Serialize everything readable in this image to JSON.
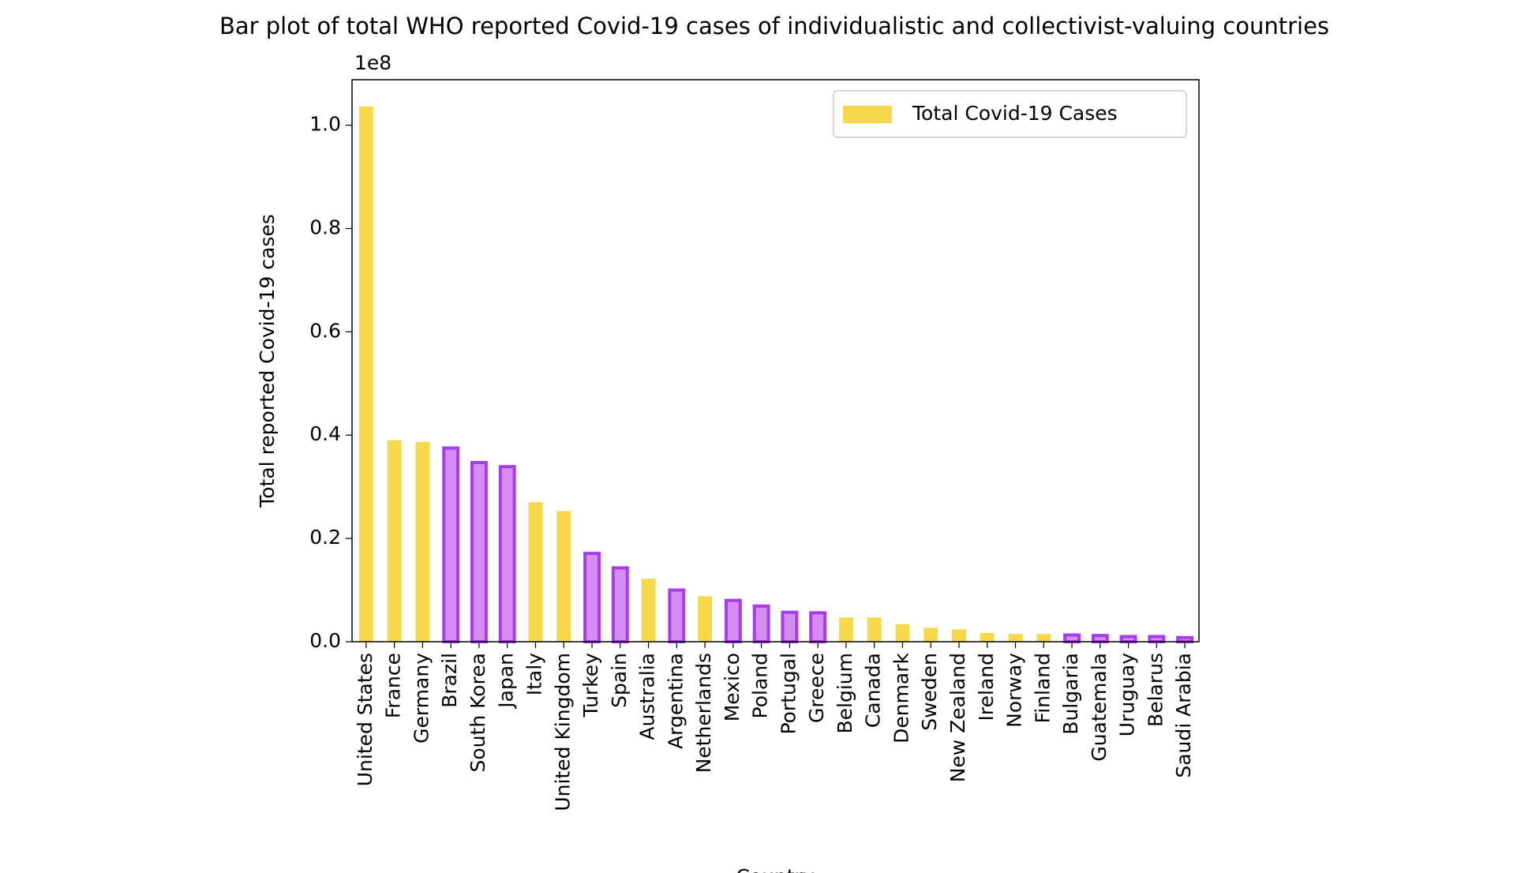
{
  "chart_data": {
    "type": "bar",
    "title": "Bar plot of total WHO reported Covid-19 cases of individualistic and collectivist-valuing countries",
    "y_label": "Total reported Covid-19 cases",
    "x_label": "Country",
    "y_offset_label": "1e8",
    "categories": [
      "United States",
      "France",
      "Germany",
      "Brazil",
      "South Korea",
      "Japan",
      "Italy",
      "United Kingdom",
      "Turkey",
      "Spain",
      "Australia",
      "Argentina",
      "Netherlands",
      "Mexico",
      "Poland",
      "Portugal",
      "Greece",
      "Belgium",
      "Canada",
      "Denmark",
      "Sweden",
      "New Zealand",
      "Ireland",
      "Norway",
      "Finland",
      "Bulgaria",
      "Guatemala",
      "Uruguay",
      "Belarus",
      "Saudi Arabia"
    ],
    "series": [
      {
        "name": "Total Covid-19 Cases",
        "color": "#f7d84a",
        "values": [
          1.036,
          0.39,
          0.387,
          0.375,
          0.347,
          0.339,
          0.27,
          0.253,
          0.171,
          0.143,
          0.122,
          0.1,
          0.088,
          0.08,
          0.069,
          0.057,
          0.056,
          0.047,
          0.047,
          0.034,
          0.027,
          0.024,
          0.017,
          0.015,
          0.015,
          0.013,
          0.012,
          0.01,
          0.01,
          0.008
        ]
      }
    ],
    "bar_colors": [
      "#f7d84a",
      "#f7d84a",
      "#f7d84a",
      "#d68cf5",
      "#d68cf5",
      "#d68cf5",
      "#f7d84a",
      "#f7d84a",
      "#d68cf5",
      "#d68cf5",
      "#f7d84a",
      "#d68cf5",
      "#f7d84a",
      "#d68cf5",
      "#d68cf5",
      "#d68cf5",
      "#d68cf5",
      "#f7d84a",
      "#f7d84a",
      "#f7d84a",
      "#f7d84a",
      "#f7d84a",
      "#f7d84a",
      "#f7d84a",
      "#f7d84a",
      "#d68cf5",
      "#d68cf5",
      "#d68cf5",
      "#d68cf5",
      "#d68cf5"
    ],
    "edge_color": "#a63de8",
    "ylim": [
      0,
      1.088
    ],
    "yticks": [
      {
        "value": 0,
        "label": "0.0"
      },
      0.2,
      0.4,
      0.6,
      0.8,
      {
        "value": 1,
        "label": "1.0"
      }
    ],
    "legend": "upper right"
  }
}
